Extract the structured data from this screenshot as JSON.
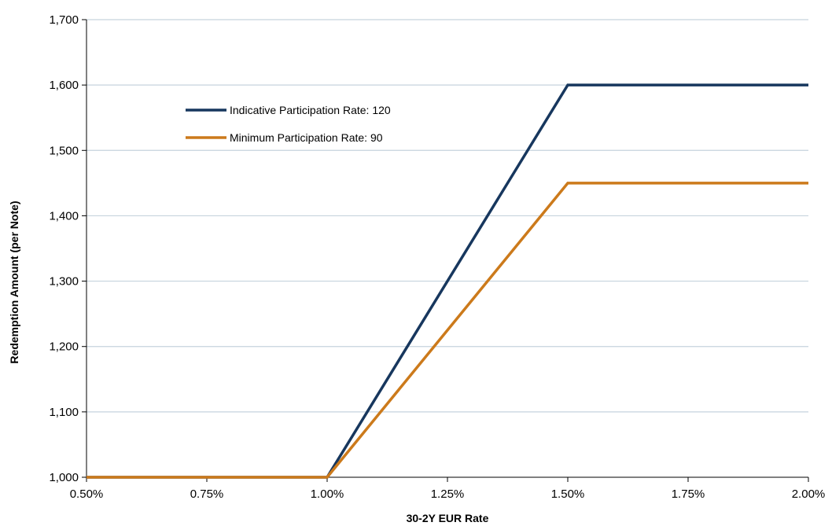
{
  "chart_data": {
    "type": "line",
    "title": "",
    "xlabel": "30-2Y EUR Rate",
    "ylabel": "Redemption Amount (per Note)",
    "x": [
      0.005,
      0.01,
      0.015,
      0.02
    ],
    "xlim": [
      0.005,
      0.02
    ],
    "ylim": [
      1000,
      1700
    ],
    "x_ticks": [
      0.005,
      0.0075,
      0.01,
      0.0125,
      0.015,
      0.0175,
      0.02
    ],
    "x_tick_labels": [
      "0.50%",
      "0.75%",
      "1.00%",
      "1.25%",
      "1.50%",
      "1.75%",
      "2.00%"
    ],
    "y_ticks": [
      1000,
      1100,
      1200,
      1300,
      1400,
      1500,
      1600,
      1700
    ],
    "y_tick_labels": [
      "1,000",
      "1,100",
      "1,200",
      "1,300",
      "1,400",
      "1,500",
      "1,600",
      "1,700"
    ],
    "grid": "horizontal",
    "legend_position": "top-left",
    "series": [
      {
        "name": "Indicative Participation Rate: 120",
        "color": "#17375E",
        "values": [
          1000,
          1000,
          1600,
          1600
        ]
      },
      {
        "name": "Minimum Participation Rate: 90",
        "color": "#CC7A1B",
        "values": [
          1000,
          1000,
          1450,
          1450
        ]
      }
    ]
  }
}
